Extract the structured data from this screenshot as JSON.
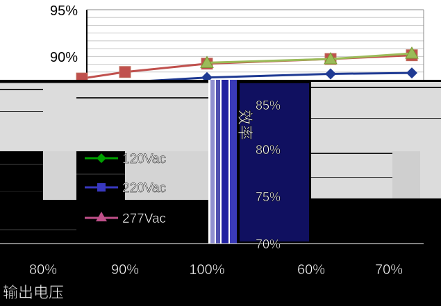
{
  "chart_data": {
    "type": "line",
    "series": [
      {
        "name": "120Vac",
        "color": "#1f3a93",
        "marker": "diamond",
        "x": [
          "60%",
          "70%",
          "80%",
          "90%",
          "100%"
        ],
        "y": [
          87.2,
          87.5,
          88.0,
          88.4,
          88.5
        ]
      },
      {
        "name": "220Vac",
        "color": "#c0504d",
        "marker": "square",
        "x": [
          "60%",
          "70%",
          "80%",
          "90%",
          "100%"
        ],
        "y": [
          87.9,
          88.6,
          89.5,
          90.0,
          90.4
        ]
      },
      {
        "name": "277Vac",
        "color": "#9bbb59",
        "marker": "triangle",
        "x": [
          "80%",
          "90%",
          "100%"
        ],
        "y": [
          89.6,
          90.0,
          90.6
        ]
      }
    ],
    "upper_y_ticks": [
      "95%",
      "90%"
    ],
    "lower_y_ticks": [
      "85%",
      "80%",
      "75%",
      "70%"
    ],
    "lower_x_ticks": [
      "80%",
      "90%",
      "100%",
      "60%",
      "70%"
    ],
    "ylabel": "效率",
    "xlabel": "输出电压",
    "legend": [
      {
        "label": "120Vac",
        "color": "#00a000",
        "marker": "diamond"
      },
      {
        "label": "220Vac",
        "color": "#3838c0",
        "marker": "square"
      },
      {
        "label": "277Vac",
        "color": "#c0508a",
        "marker": "triangle"
      }
    ],
    "grid": true
  }
}
